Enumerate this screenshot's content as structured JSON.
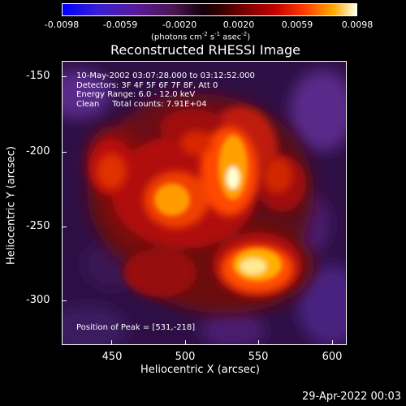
{
  "colorbar": {
    "ticks": [
      "-0.0098",
      "-0.0059",
      "-0.0020",
      "0.0020",
      "0.0059",
      "0.0098"
    ],
    "unit_prefix": "(photons cm",
    "unit_exp1": "-2",
    "unit_mid": " s",
    "unit_exp2": "-1",
    "unit_mid2": " asec",
    "unit_exp3": "-2",
    "unit_suffix": ")"
  },
  "title": "Reconstructed RHESSI Image",
  "annotations": {
    "time": "10-May-2002 03:07:28.000 to 03:12:52.000",
    "detectors": "Detectors: 3F 4F 5F 6F 7F 8F, Att 0",
    "energy": "Energy Range: 6.0 - 12.0 keV",
    "clean": "Clean     Total counts: 7.91E+04",
    "peak": "Position of Peak = [531,-218]"
  },
  "axes": {
    "y_ticks": [
      "-150",
      "-200",
      "-250",
      "-300"
    ],
    "x_ticks": [
      "450",
      "500",
      "550",
      "600"
    ],
    "xlabel": "Heliocentric X (arcsec)",
    "ylabel": "Heliocentric Y (arcsec)"
  },
  "footer": "29-Apr-2022 00:03",
  "colors": {
    "background": "#000000",
    "foreground": "#ffffff",
    "low": "#0000ff",
    "high": "#ffffe8"
  }
}
